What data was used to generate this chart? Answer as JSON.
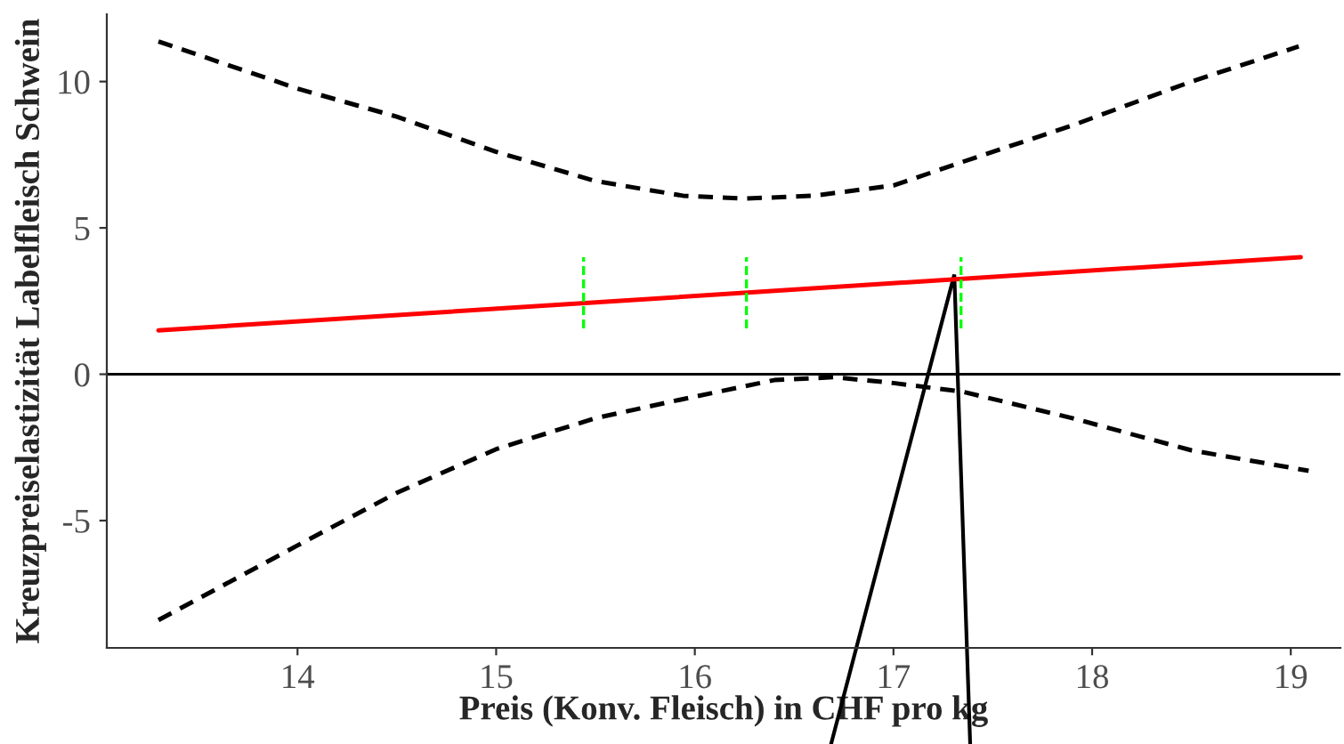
{
  "chart_data": {
    "type": "line",
    "xlabel": "Preis (Konv. Fleisch) in CHF pro kg",
    "ylabel": "Kreuzpreiselastizität Labelfleisch Schwein",
    "xlim": [
      13.04,
      19.25
    ],
    "ylim": [
      -9.35,
      12.3
    ],
    "xticks": [
      14,
      15,
      16,
      17,
      18,
      19
    ],
    "yticks": [
      -5,
      0,
      5,
      10
    ],
    "grid": false,
    "legend": false,
    "ref_lines": [
      {
        "axis": "y",
        "value": 0,
        "color": "#000000",
        "line_style": "solid"
      }
    ],
    "series": [
      {
        "color": "#ff0000",
        "line_style": "solid",
        "x": [
          13.3,
          19.05
        ],
        "values": [
          1.5,
          4.0
        ]
      },
      {
        "color": "#000000",
        "line_style": "dashed",
        "x": [
          13.3,
          14,
          14.5,
          15,
          15.5,
          15.94,
          16.25,
          16.6,
          17.0,
          17.35,
          17.9,
          18.5,
          19.04
        ],
        "values": [
          11.37,
          9.76,
          8.8,
          7.6,
          6.6,
          6.1,
          6.0,
          6.1,
          6.45,
          7.26,
          8.5,
          10.0,
          11.2
        ]
      },
      {
        "color": "#000000",
        "line_style": "dashed",
        "x": [
          13.3,
          14,
          14.5,
          15,
          15.5,
          15.94,
          16.4,
          16.7,
          17.0,
          17.35,
          17.9,
          18.5,
          19.09
        ],
        "values": [
          -8.4,
          -5.85,
          -4.05,
          -2.56,
          -1.5,
          -0.85,
          -0.2,
          -0.1,
          -0.3,
          -0.6,
          -1.5,
          -2.6,
          -3.3
        ]
      },
      {
        "color": "#00ff00",
        "line_style": "dashed",
        "x": [
          15.44,
          15.44
        ],
        "values": [
          1.5,
          4.0
        ]
      },
      {
        "color": "#00ff00",
        "line_style": "dashed",
        "x": [
          16.26,
          16.26
        ],
        "values": [
          1.5,
          4.0
        ]
      },
      {
        "color": "#00ff00",
        "line_style": "dashed",
        "x": [
          17.34,
          17.34
        ],
        "values": [
          1.5,
          4.0
        ]
      }
    ]
  }
}
